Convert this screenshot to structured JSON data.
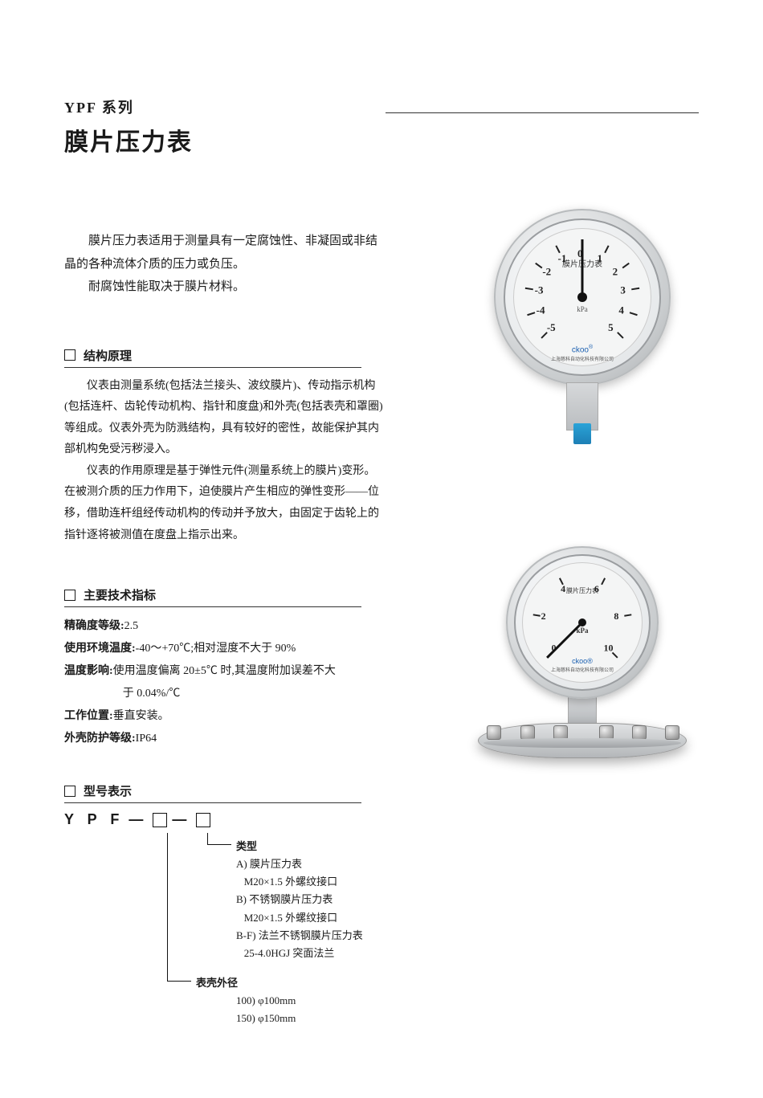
{
  "header": {
    "series": "YPF 系列",
    "title": "膜片压力表"
  },
  "intro": {
    "p1": "膜片压力表适用于测量具有一定腐蚀性、非凝固或非结晶的各种流体介质的压力或负压。",
    "p2": "耐腐蚀性能取决于膜片材料。"
  },
  "sections": {
    "structure": {
      "title": "结构原理",
      "p1": "仪表由测量系统(包括法兰接头、波纹膜片)、传动指示机构(包括连杆、齿轮传动机构、指针和度盘)和外壳(包括表壳和罩圈)等组成。仪表外壳为防溅结构，具有较好的密性，故能保护其内部机构免受污秽浸入。",
      "p2": "仪表的作用原理是基于弹性元件(测量系统上的膜片)变形。在被测介质的压力作用下，迫使膜片产生相应的弹性变形——位移，借助连杆组经传动机构的传动并予放大，由固定于齿轮上的指针逐将被测值在度盘上指示出来。"
    },
    "specs": {
      "title": "主要技术指标",
      "rows": [
        {
          "k": "精确度等级:",
          "v": " 2.5"
        },
        {
          "k": "使用环境温度:",
          "v": " -40～+70℃;相对湿度不大于 90%"
        },
        {
          "k": "温度影响:",
          "v": " 使用温度偏离 20±5℃ 时,其温度附加误差不大"
        },
        {
          "k": "",
          "v": "于 0.04%/℃"
        },
        {
          "k": "工作位置:",
          "v": " 垂直安装。"
        },
        {
          "k": "外壳防护等级:",
          "v": " IP64"
        }
      ]
    },
    "model": {
      "title": "型号表示",
      "code_prefix": "Y P F",
      "type_label": "类型",
      "types": [
        "A) 膜片压力表",
        "   M20×1.5 外螺纹接口",
        "B) 不锈钢膜片压力表",
        "   M20×1.5 外螺纹接口",
        "B-F) 法兰不锈钢膜片压力表",
        "   25-4.0HGJ 突面法兰"
      ],
      "diameter_label": "表壳外径",
      "diameters": [
        "100) φ100mm",
        "150) φ150mm"
      ]
    }
  },
  "gauge1": {
    "label": "膜片压力表",
    "brand": "ckoo",
    "sub": "上海慈科自动化科技有限公司",
    "unit": "kPa",
    "scale": [
      -5,
      -4,
      -3,
      -2,
      -1,
      0,
      1,
      2,
      3,
      4,
      5
    ],
    "angle_start": -135,
    "angle_end": 135,
    "needle_angle": 0,
    "case_color": "#c9ccce",
    "face_color": "#f4f5f5",
    "thread_color": "#1d7fb5"
  },
  "gauge2": {
    "label": "膜片压力表",
    "brand": "ckoo",
    "sub": "上海慈科自动化科技有限公司",
    "unit": "kPa",
    "scale": [
      0,
      2,
      4,
      6,
      8,
      10
    ],
    "angle_start": -135,
    "angle_end": 135,
    "needle_angle": -135,
    "bolt_positions_pct": [
      4,
      20,
      36,
      58,
      74,
      90
    ]
  },
  "colors": {
    "text": "#1a1a1a",
    "rule": "#333333",
    "brand_blue": "#1a5fb0",
    "steel_light": "#e0e2e4",
    "steel_dark": "#a8abae"
  }
}
